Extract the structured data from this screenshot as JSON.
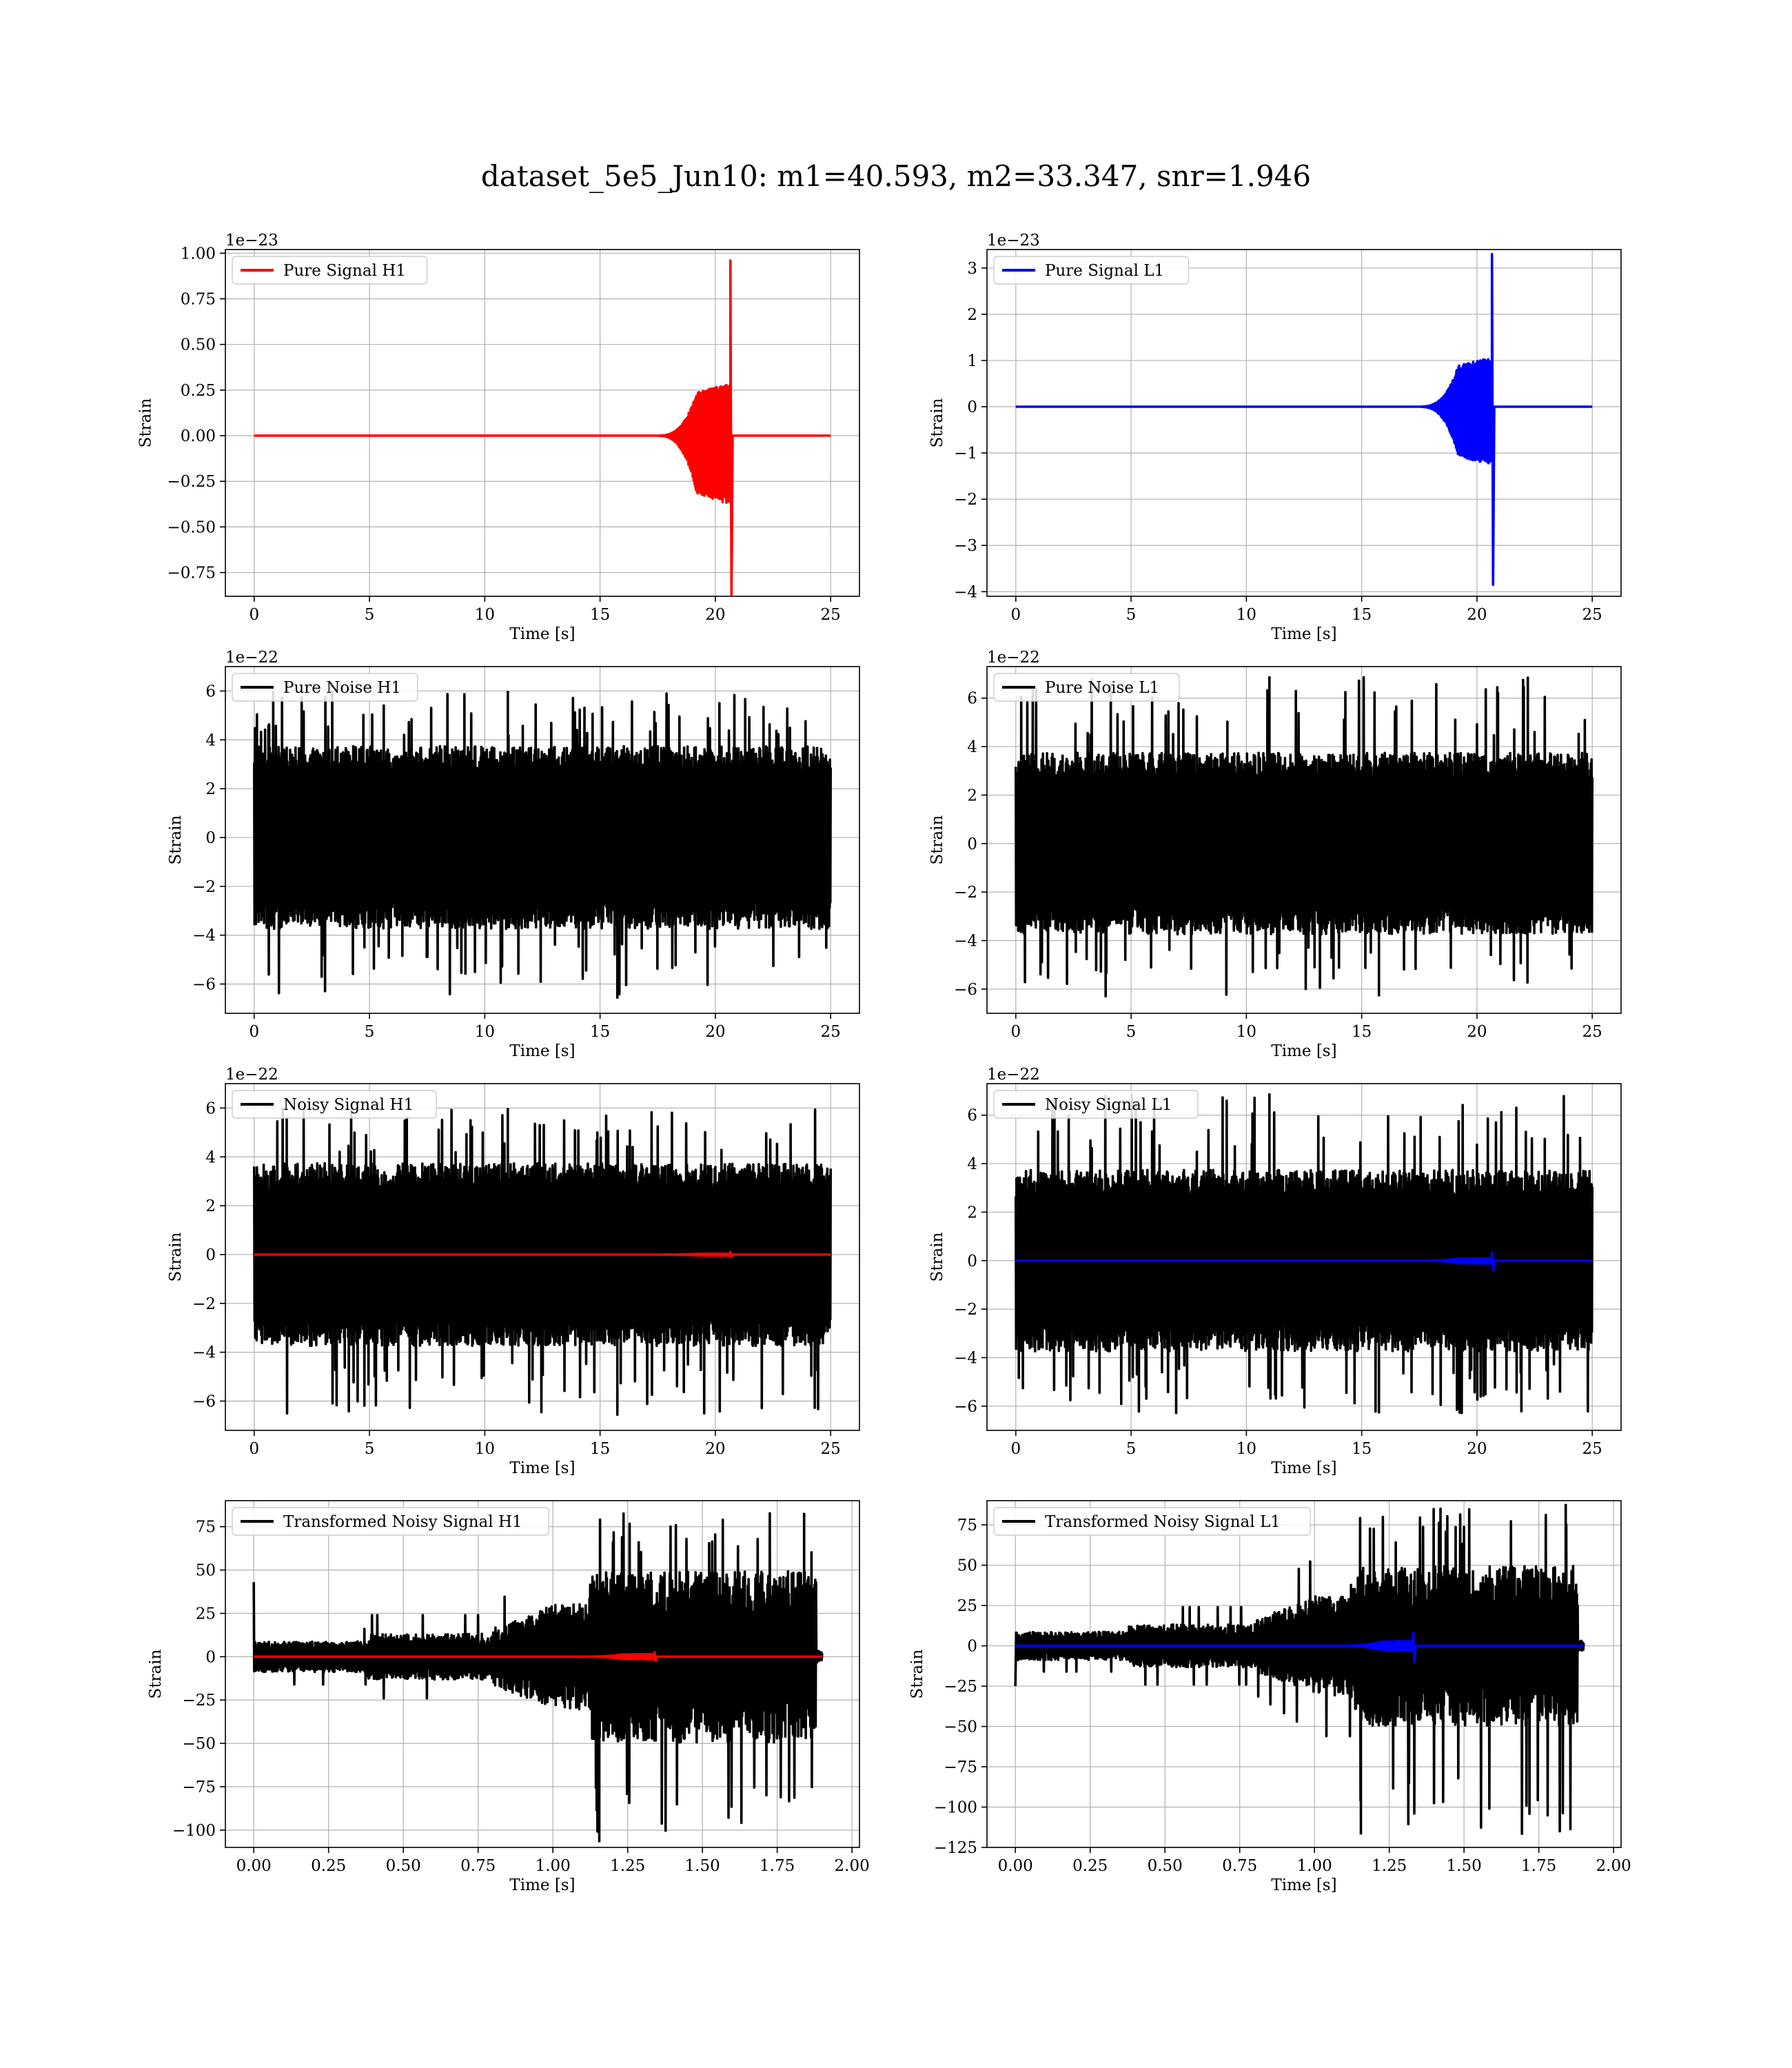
{
  "figure": {
    "title": "dataset_5e5_Jun10: m1=40.593, m2=33.347, snr=1.946"
  },
  "colors": {
    "red": "#ff0000",
    "blue": "#0000ff",
    "black": "#000000"
  },
  "chart_data": [
    {
      "id": "pure-signal-h1",
      "type": "line",
      "xlabel": "Time [s]",
      "ylabel": "Strain",
      "offset_text": "1e−23",
      "xlim": [
        -1.25,
        26.25
      ],
      "ylim": [
        -0.88,
        1.02
      ],
      "xticks": [
        0,
        5,
        10,
        15,
        20,
        25
      ],
      "xtick_labels": [
        "0",
        "5",
        "10",
        "15",
        "20",
        "25"
      ],
      "yticks": [
        -0.75,
        -0.5,
        -0.25,
        0,
        0.25,
        0.5,
        0.75,
        1.0
      ],
      "ytick_labels": [
        "−0.75",
        "−0.50",
        "−0.25",
        "0.00",
        "0.25",
        "0.50",
        "0.75",
        "1.00"
      ],
      "series": [
        {
          "name": "Pure Signal H1",
          "color": "#ff0000",
          "kind": "chirp",
          "x_range": [
            0,
            25
          ],
          "t_merger": 20.65,
          "peak_pos": 0.96,
          "peak_neg": -0.87,
          "ring_pos": 0.28,
          "ring_neg": -0.37
        }
      ],
      "legend": [
        {
          "label": "Pure Signal H1",
          "color": "#ff0000"
        }
      ],
      "legend_loc": "upper left",
      "grid": true
    },
    {
      "id": "pure-signal-l1",
      "type": "line",
      "xlabel": "Time [s]",
      "ylabel": "Strain",
      "offset_text": "1e−23",
      "xlim": [
        -1.25,
        26.25
      ],
      "ylim": [
        -4.1,
        3.4
      ],
      "xticks": [
        0,
        5,
        10,
        15,
        20,
        25
      ],
      "xtick_labels": [
        "0",
        "5",
        "10",
        "15",
        "20",
        "25"
      ],
      "yticks": [
        -4,
        -3,
        -2,
        -1,
        0,
        1,
        2,
        3
      ],
      "ytick_labels": [
        "−4",
        "−3",
        "−2",
        "−1",
        "0",
        "1",
        "2",
        "3"
      ],
      "series": [
        {
          "name": "Pure Signal L1",
          "color": "#0000ff",
          "kind": "chirp",
          "x_range": [
            0,
            25
          ],
          "t_merger": 20.65,
          "peak_pos": 3.3,
          "peak_neg": -3.85,
          "ring_pos": 1.05,
          "ring_neg": -1.25
        }
      ],
      "legend": [
        {
          "label": "Pure Signal L1",
          "color": "#0000ff"
        }
      ],
      "legend_loc": "upper left",
      "grid": true
    },
    {
      "id": "pure-noise-h1",
      "type": "line",
      "xlabel": "Time [s]",
      "ylabel": "Strain",
      "offset_text": "1e−22",
      "xlim": [
        -1.25,
        26.25
      ],
      "ylim": [
        -7.2,
        7.0
      ],
      "xticks": [
        0,
        5,
        10,
        15,
        20,
        25
      ],
      "xtick_labels": [
        "0",
        "5",
        "10",
        "15",
        "20",
        "25"
      ],
      "yticks": [
        -6,
        -4,
        -2,
        0,
        2,
        4,
        6
      ],
      "ytick_labels": [
        "−6",
        "−4",
        "−2",
        "0",
        "2",
        "4",
        "6"
      ],
      "series": [
        {
          "name": "Pure Noise H1",
          "color": "#000000",
          "kind": "noise",
          "x_range": [
            0,
            25
          ],
          "band": 3.4,
          "max": 6.0,
          "min": -6.6
        }
      ],
      "legend": [
        {
          "label": "Pure Noise H1",
          "color": "#000000"
        }
      ],
      "legend_loc": "upper left",
      "grid": true
    },
    {
      "id": "pure-noise-l1",
      "type": "line",
      "xlabel": "Time [s]",
      "ylabel": "Strain",
      "offset_text": "1e−22",
      "xlim": [
        -1.25,
        26.25
      ],
      "ylim": [
        -7.0,
        7.3
      ],
      "xticks": [
        0,
        5,
        10,
        15,
        20,
        25
      ],
      "xtick_labels": [
        "0",
        "5",
        "10",
        "15",
        "20",
        "25"
      ],
      "yticks": [
        -6,
        -4,
        -2,
        0,
        2,
        4,
        6
      ],
      "ytick_labels": [
        "−6",
        "−4",
        "−2",
        "0",
        "2",
        "4",
        "6"
      ],
      "series": [
        {
          "name": "Pure Noise L1",
          "color": "#000000",
          "kind": "noise",
          "x_range": [
            0,
            25
          ],
          "band": 3.4,
          "max": 6.9,
          "min": -6.3
        }
      ],
      "legend": [
        {
          "label": "Pure Noise L1",
          "color": "#000000"
        }
      ],
      "legend_loc": "upper left",
      "grid": true
    },
    {
      "id": "noisy-signal-h1",
      "type": "line",
      "xlabel": "Time [s]",
      "ylabel": "Strain",
      "offset_text": "1e−22",
      "xlim": [
        -1.25,
        26.25
      ],
      "ylim": [
        -7.2,
        7.0
      ],
      "xticks": [
        0,
        5,
        10,
        15,
        20,
        25
      ],
      "xtick_labels": [
        "0",
        "5",
        "10",
        "15",
        "20",
        "25"
      ],
      "yticks": [
        -6,
        -4,
        -2,
        0,
        2,
        4,
        6
      ],
      "ytick_labels": [
        "−6",
        "−4",
        "−2",
        "0",
        "2",
        "4",
        "6"
      ],
      "series": [
        {
          "name": "Noisy Signal H1",
          "color": "#000000",
          "kind": "noise",
          "x_range": [
            0,
            25
          ],
          "band": 3.4,
          "max": 6.0,
          "min": -6.6
        },
        {
          "color": "#ff0000",
          "kind": "chirp",
          "x_range": [
            0,
            25
          ],
          "t_merger": 20.65,
          "peak_pos": 0.1,
          "peak_neg": -0.09,
          "ring_pos": 0.03,
          "ring_neg": -0.04
        }
      ],
      "legend": [
        {
          "label": "Noisy Signal H1",
          "color": "#000000"
        }
      ],
      "legend_loc": "upper left",
      "grid": true
    },
    {
      "id": "noisy-signal-l1",
      "type": "line",
      "xlabel": "Time [s]",
      "ylabel": "Strain",
      "offset_text": "1e−22",
      "xlim": [
        -1.25,
        26.25
      ],
      "ylim": [
        -7.0,
        7.3
      ],
      "xticks": [
        0,
        5,
        10,
        15,
        20,
        25
      ],
      "xtick_labels": [
        "0",
        "5",
        "10",
        "15",
        "20",
        "25"
      ],
      "yticks": [
        -6,
        -4,
        -2,
        0,
        2,
        4,
        6
      ],
      "ytick_labels": [
        "−6",
        "−4",
        "−2",
        "0",
        "2",
        "4",
        "6"
      ],
      "series": [
        {
          "name": "Noisy Signal L1",
          "color": "#000000",
          "kind": "noise",
          "x_range": [
            0,
            25
          ],
          "band": 3.4,
          "max": 6.9,
          "min": -6.3
        },
        {
          "color": "#0000ff",
          "kind": "chirp",
          "x_range": [
            0,
            25
          ],
          "t_merger": 20.65,
          "peak_pos": 0.33,
          "peak_neg": -0.38,
          "ring_pos": 0.1,
          "ring_neg": -0.12
        }
      ],
      "legend": [
        {
          "label": "Noisy Signal L1",
          "color": "#000000"
        }
      ],
      "legend_loc": "upper left",
      "grid": true
    },
    {
      "id": "transformed-noisy-signal-h1",
      "type": "line",
      "xlabel": "Time [s]",
      "ylabel": "Strain",
      "offset_text": "",
      "xlim": [
        -0.095,
        2.025
      ],
      "ylim": [
        -110,
        90
      ],
      "xticks": [
        0,
        0.25,
        0.5,
        0.75,
        1.0,
        1.25,
        1.5,
        1.75,
        2.0
      ],
      "xtick_labels": [
        "0.00",
        "0.25",
        "0.50",
        "0.75",
        "1.00",
        "1.25",
        "1.50",
        "1.75",
        "2.00"
      ],
      "yticks": [
        -100,
        -75,
        -50,
        -25,
        0,
        25,
        50,
        75
      ],
      "ytick_labels": [
        "−100",
        "−75",
        "−50",
        "−25",
        "0",
        "25",
        "50",
        "75"
      ],
      "series": [
        {
          "name": "Transformed Noisy Signal H1",
          "color": "#000000",
          "kind": "whitened",
          "x_range": [
            0,
            1.9
          ],
          "spike0": 43,
          "max": 83,
          "min": -107
        },
        {
          "color": "#ff0000",
          "kind": "chirp",
          "x_range": [
            0,
            1.9
          ],
          "t_merger": 1.34,
          "peak_pos": 2.5,
          "peak_neg": -2.5,
          "ring_pos": 1.5,
          "ring_neg": -1.5
        }
      ],
      "legend": [
        {
          "label": "Transformed Noisy Signal H1",
          "color": "#000000"
        }
      ],
      "legend_loc": "upper left",
      "grid": true
    },
    {
      "id": "transformed-noisy-signal-l1",
      "type": "line",
      "xlabel": "Time [s]",
      "ylabel": "Strain",
      "offset_text": "",
      "xlim": [
        -0.095,
        2.025
      ],
      "ylim": [
        -125,
        90
      ],
      "xticks": [
        0,
        0.25,
        0.5,
        0.75,
        1.0,
        1.25,
        1.5,
        1.75,
        2.0
      ],
      "xtick_labels": [
        "0.00",
        "0.25",
        "0.50",
        "0.75",
        "1.00",
        "1.25",
        "1.50",
        "1.75",
        "2.00"
      ],
      "yticks": [
        -125,
        -100,
        -75,
        -50,
        -25,
        0,
        25,
        50,
        75
      ],
      "ytick_labels": [
        "−125",
        "−100",
        "−75",
        "−50",
        "−25",
        "0",
        "25",
        "50",
        "75"
      ],
      "series": [
        {
          "name": "Transformed Noisy Signal L1",
          "color": "#000000",
          "kind": "whitened",
          "x_range": [
            0,
            1.9
          ],
          "spike0": -25,
          "max": 88,
          "min": -117
        },
        {
          "color": "#0000ff",
          "kind": "chirp",
          "x_range": [
            0,
            1.9
          ],
          "t_merger": 1.33,
          "peak_pos": 8,
          "peak_neg": -10,
          "ring_pos": 3,
          "ring_neg": -3
        }
      ],
      "legend": [
        {
          "label": "Transformed Noisy Signal L1",
          "color": "#000000"
        }
      ],
      "legend_loc": "upper left",
      "grid": true
    }
  ]
}
